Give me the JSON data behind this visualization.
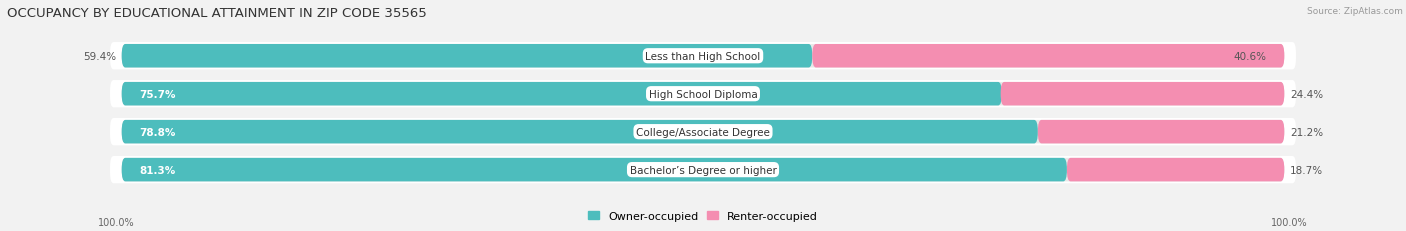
{
  "title": "OCCUPANCY BY EDUCATIONAL ATTAINMENT IN ZIP CODE 35565",
  "source": "Source: ZipAtlas.com",
  "categories": [
    "Less than High School",
    "High School Diploma",
    "College/Associate Degree",
    "Bachelor’s Degree or higher"
  ],
  "owner_pct": [
    59.4,
    75.7,
    78.8,
    81.3
  ],
  "renter_pct": [
    40.6,
    24.4,
    21.2,
    18.7
  ],
  "owner_color": "#4DBDBD",
  "renter_color": "#F48EB1",
  "bg_color": "#f2f2f2",
  "row_bg_color": "#ffffff",
  "bar_track_color": "#e8e8e8",
  "title_fontsize": 9.5,
  "label_fontsize": 7.5,
  "pct_fontsize": 7.5,
  "source_fontsize": 6.5,
  "legend_fontsize": 8,
  "tick_fontsize": 7
}
